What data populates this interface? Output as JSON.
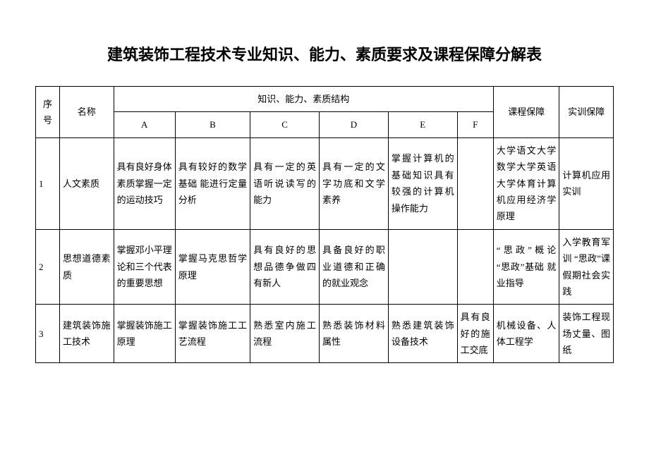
{
  "title": "建筑装饰工程技术专业知识、能力、素质要求及课程保障分解表",
  "headers": {
    "seq": "序号",
    "name": "名称",
    "structure": "知识、能力、素质结构",
    "a": "A",
    "b": "B",
    "c": "C",
    "d": "D",
    "e": "E",
    "f": "F",
    "course": "课程保障",
    "training": "实训保障"
  },
  "rows": [
    {
      "seq": "1",
      "name": "人文素质",
      "a": "具有良好身体素质掌握一定的运动技巧",
      "b": "具有较好的数学基础\n能进行定量分析",
      "c": "具有一定的英语听说读写的能力",
      "d": "具有一定的文字功底和文学素养",
      "e": "掌握计算机的基础知识具有较强的计算机操作能力",
      "f": "",
      "course": "大学语文大学数学大学英语大学体育计算机应用经济学原理",
      "training": "计算机应用实训"
    },
    {
      "seq": "2",
      "name": "思想道德素质",
      "a": "掌握邓小平理论和三个代表的重要思想",
      "b": "掌握马克思哲学原理",
      "c": "具有良好的思想品德争做四有新人",
      "d": "具备良好的职业道德和正确的就业观念",
      "e": "",
      "f": "",
      "course": "“思政”概论\n“思政”基础\n就业指导",
      "training": "入学教育军训\n“思政”课假期社会实践"
    },
    {
      "seq": "3",
      "name": "建筑装饰施工技术",
      "a": "掌握装饰施工原理",
      "b": "掌握装饰施工工艺流程",
      "c": "熟悉室内施工流程",
      "d": "熟悉装饰材料属性",
      "e": "熟悉建筑装饰设备技术",
      "f": "具有良好的施工交底",
      "course": "机械设备、人体工程学",
      "training": "装饰工程现场丈量、图纸"
    }
  ]
}
